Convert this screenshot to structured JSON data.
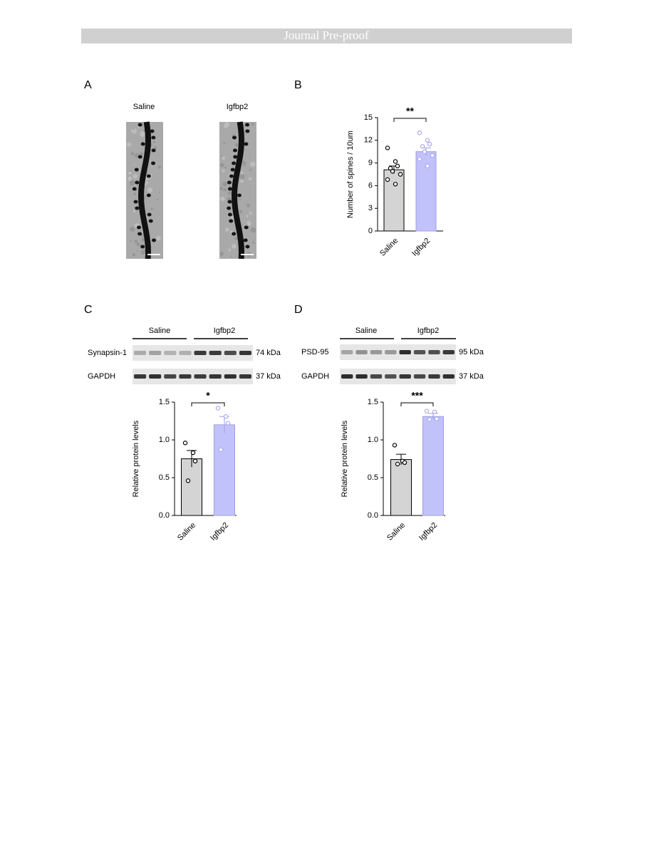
{
  "banner": "Journal Pre-proof",
  "panels": {
    "A": {
      "letter": "A",
      "labels": [
        "Saline",
        "Igfbp2"
      ]
    },
    "B": {
      "letter": "B"
    },
    "C": {
      "letter": "C",
      "groups": [
        "Saline",
        "Igfbp2"
      ],
      "blots": [
        {
          "protein": "Synapsin-1",
          "size": "74 kDa"
        },
        {
          "protein": "GAPDH",
          "size": "37 kDa"
        }
      ]
    },
    "D": {
      "letter": "D",
      "groups": [
        "Saline",
        "Igfbp2"
      ],
      "blots": [
        {
          "protein": "PSD-95",
          "size": "95 kDa"
        },
        {
          "protein": "GAPDH",
          "size": "37 kDa"
        }
      ]
    }
  },
  "chart_data": [
    {
      "type": "bar",
      "ylabel": "Number of spines / 10um",
      "categories": [
        "Saline",
        "Igfbp2"
      ],
      "values": [
        8.1,
        10.5
      ],
      "errors": [
        0.5,
        0.5
      ],
      "points": [
        [
          11,
          9.2,
          8.6,
          8.3,
          7.9,
          7.5,
          6.8,
          6.2
        ],
        [
          13,
          12,
          11.5,
          11.2,
          10.5,
          10,
          9.5,
          8.6
        ]
      ],
      "colors": [
        "#d4d4d4",
        "#c2c2fa"
      ],
      "edge_colors": [
        "#000000",
        "#9d9de8"
      ],
      "significance": "**",
      "ylim": [
        0,
        15
      ],
      "yticks": [
        0,
        3,
        6,
        9,
        12,
        15
      ]
    },
    {
      "type": "bar",
      "ylabel": "Relative protein levels",
      "categories": [
        "Saline",
        "Igfbp2"
      ],
      "values": [
        0.75,
        1.2
      ],
      "errors": [
        0.11,
        0.11
      ],
      "points": [
        [
          0.96,
          0.83,
          0.72,
          0.46
        ],
        [
          1.42,
          1.31,
          1.22,
          0.87
        ]
      ],
      "colors": [
        "#d4d4d4",
        "#c2c2fa"
      ],
      "edge_colors": [
        "#000000",
        "#9d9de8"
      ],
      "significance": "*",
      "ylim": [
        0,
        1.5
      ],
      "yticks": [
        {
          "value": 0,
          "label": "0.0"
        },
        {
          "value": 0.5,
          "label": "0.5"
        },
        {
          "value": 1,
          "label": "1.0"
        },
        {
          "value": 1.5,
          "label": "1.5"
        }
      ]
    },
    {
      "type": "bar",
      "ylabel": "Relative protein levels",
      "categories": [
        "Saline",
        "Igfbp2"
      ],
      "values": [
        0.74,
        1.31
      ],
      "errors": [
        0.07,
        0.04
      ],
      "points": [
        [
          0.93,
          0.72,
          0.7,
          0.68
        ],
        [
          1.38,
          1.37,
          1.28,
          1.27
        ]
      ],
      "colors": [
        "#d4d4d4",
        "#c2c2fa"
      ],
      "edge_colors": [
        "#000000",
        "#9d9de8"
      ],
      "significance": "***",
      "ylim": [
        0,
        1.5
      ],
      "yticks": [
        {
          "value": 0,
          "label": "0.0"
        },
        {
          "value": 0.5,
          "label": "0.5"
        },
        {
          "value": 1,
          "label": "1.0"
        },
        {
          "value": 1.5,
          "label": "1.5"
        }
      ]
    }
  ]
}
